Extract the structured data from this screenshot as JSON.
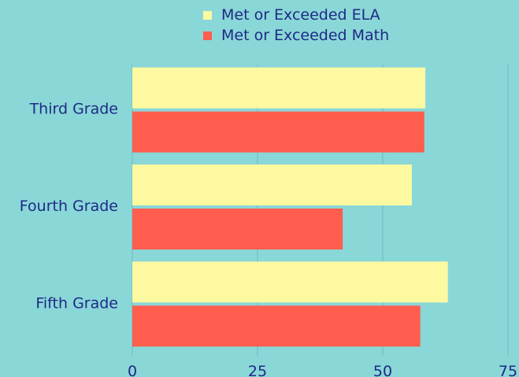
{
  "chart_data": {
    "type": "bar",
    "orientation": "horizontal",
    "categories": [
      "Third Grade",
      "Fourth Grade",
      "Fifth Grade"
    ],
    "series": [
      {
        "name": "Met or Exceeded ELA",
        "values": [
          58.5,
          55.8,
          63
        ],
        "color": "#fdf9a1"
      },
      {
        "name": "Met or Exceeded Math",
        "values": [
          58.3,
          42,
          57.5
        ],
        "color": "#ff5d4e"
      }
    ],
    "xlim": [
      0,
      75
    ],
    "xticks": [
      "0",
      "25",
      "50",
      "75"
    ],
    "grid": true,
    "legend_position": "top-center",
    "background_color": "#8ad7d8",
    "text_color": "#1e2a84",
    "grid_color": "#6fb8bc"
  }
}
